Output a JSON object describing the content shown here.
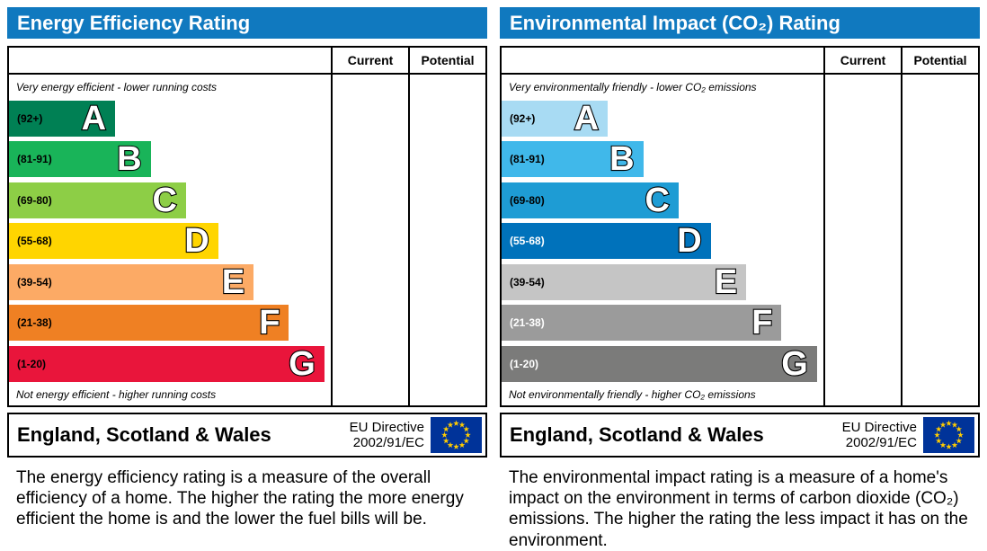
{
  "theme": {
    "header_bg": "#1079bf",
    "flag_bg": "#003399",
    "flag_star": "#ffcc00"
  },
  "panels": [
    {
      "title": "Energy Efficiency Rating",
      "columns": [
        "Current",
        "Potential"
      ],
      "top_note": "Very energy efficient - lower running costs",
      "bottom_note": "Not energy efficient - higher running costs",
      "bands": [
        {
          "letter": "A",
          "range": "(92+)",
          "color": "#008054",
          "text_color": "#000000",
          "width_pct": 33
        },
        {
          "letter": "B",
          "range": "(81-91)",
          "color": "#19b459",
          "text_color": "#000000",
          "width_pct": 44
        },
        {
          "letter": "C",
          "range": "(69-80)",
          "color": "#8dce46",
          "text_color": "#000000",
          "width_pct": 55
        },
        {
          "letter": "D",
          "range": "(55-68)",
          "color": "#ffd500",
          "text_color": "#000000",
          "width_pct": 65
        },
        {
          "letter": "E",
          "range": "(39-54)",
          "color": "#fcaa65",
          "text_color": "#000000",
          "width_pct": 76
        },
        {
          "letter": "F",
          "range": "(21-38)",
          "color": "#ef8023",
          "text_color": "#000000",
          "width_pct": 87
        },
        {
          "letter": "G",
          "range": "(1-20)",
          "color": "#e9153b",
          "text_color": "#000000",
          "width_pct": 98
        }
      ],
      "footer_region": "England, Scotland & Wales",
      "eu_directive_line1": "EU Directive",
      "eu_directive_line2": "2002/91/EC",
      "description": "The energy efficiency rating is a measure of the overall efficiency of a home. The higher the rating the more energy efficient the home is and the lower the fuel bills will be."
    },
    {
      "title": "Environmental Impact (CO₂) Rating",
      "columns": [
        "Current",
        "Potential"
      ],
      "top_note": "Very environmentally friendly - lower CO₂ emissions",
      "bottom_note": "Not environmentally friendly - higher CO₂ emissions",
      "bands": [
        {
          "letter": "A",
          "range": "(92+)",
          "color": "#a8dbf3",
          "text_color": "#000000",
          "width_pct": 33
        },
        {
          "letter": "B",
          "range": "(81-91)",
          "color": "#40b8ea",
          "text_color": "#000000",
          "width_pct": 44
        },
        {
          "letter": "C",
          "range": "(69-80)",
          "color": "#1e9cd4",
          "text_color": "#000000",
          "width_pct": 55
        },
        {
          "letter": "D",
          "range": "(55-68)",
          "color": "#0072bb",
          "text_color": "#ffffff",
          "width_pct": 65
        },
        {
          "letter": "E",
          "range": "(39-54)",
          "color": "#c5c5c5",
          "text_color": "#000000",
          "width_pct": 76
        },
        {
          "letter": "F",
          "range": "(21-38)",
          "color": "#9b9b9b",
          "text_color": "#ffffff",
          "width_pct": 87
        },
        {
          "letter": "G",
          "range": "(1-20)",
          "color": "#7b7b7a",
          "text_color": "#ffffff",
          "width_pct": 98
        }
      ],
      "footer_region": "England, Scotland & Wales",
      "eu_directive_line1": "EU Directive",
      "eu_directive_line2": "2002/91/EC",
      "description": "The environmental impact rating is a measure of a home's impact on the environment in terms of carbon dioxide (CO₂) emissions. The higher the rating the less impact it has on the environment."
    }
  ],
  "chart_data": [
    {
      "type": "bar",
      "orientation": "horizontal",
      "title": "Energy Efficiency Rating",
      "categories": [
        "A",
        "B",
        "C",
        "D",
        "E",
        "F",
        "G"
      ],
      "band_ranges": [
        "92+",
        "81-91",
        "69-80",
        "55-68",
        "39-54",
        "21-38",
        "1-20"
      ],
      "values": [
        33,
        44,
        55,
        65,
        76,
        87,
        98
      ],
      "value_note": "bar lengths are the fixed EPC scale design (percent of band-area width); no property ratings are plotted",
      "colors": [
        "#008054",
        "#19b459",
        "#8dce46",
        "#ffd500",
        "#fcaa65",
        "#ef8023",
        "#e9153b"
      ],
      "columns": [
        "Current",
        "Potential"
      ],
      "current": null,
      "potential": null,
      "top_annotation": "Very energy efficient - lower running costs",
      "bottom_annotation": "Not energy efficient - higher running costs"
    },
    {
      "type": "bar",
      "orientation": "horizontal",
      "title": "Environmental Impact (CO₂) Rating",
      "categories": [
        "A",
        "B",
        "C",
        "D",
        "E",
        "F",
        "G"
      ],
      "band_ranges": [
        "92+",
        "81-91",
        "69-80",
        "55-68",
        "39-54",
        "21-38",
        "1-20"
      ],
      "values": [
        33,
        44,
        55,
        65,
        76,
        87,
        98
      ],
      "value_note": "bar lengths are the fixed EPC scale design (percent of band-area width); no property ratings are plotted",
      "colors": [
        "#a8dbf3",
        "#40b8ea",
        "#1e9cd4",
        "#0072bb",
        "#c5c5c5",
        "#9b9b9b",
        "#7b7b7a"
      ],
      "columns": [
        "Current",
        "Potential"
      ],
      "current": null,
      "potential": null,
      "top_annotation": "Very environmentally friendly - lower CO₂ emissions",
      "bottom_annotation": "Not environmentally friendly - higher CO₂ emissions"
    }
  ]
}
